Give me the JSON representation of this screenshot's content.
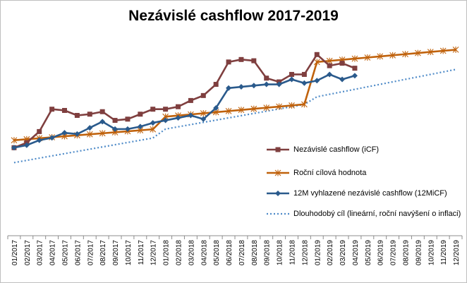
{
  "chart_data": {
    "type": "line",
    "title": "Nezávislé cashflow 2017-2019",
    "xlabel": "",
    "ylabel": "",
    "ylim": [
      0,
      100
    ],
    "grid": false,
    "legend_position": "right",
    "categories": [
      "01/2017",
      "02/2017",
      "03/2017",
      "04/2017",
      "05/2017",
      "06/2017",
      "07/2017",
      "08/2017",
      "09/2017",
      "10/2017",
      "11/2017",
      "12/2017",
      "01/2018",
      "02/2018",
      "03/2018",
      "04/2018",
      "05/2018",
      "06/2018",
      "07/2018",
      "08/2018",
      "09/2018",
      "10/2018",
      "11/2018",
      "12/2018",
      "01/2019",
      "02/2019",
      "03/2019",
      "04/2019",
      "05/2019",
      "06/2019",
      "07/2019",
      "08/2019",
      "09/2019",
      "10/2019",
      "11/2019",
      "12/2019"
    ],
    "series": [
      {
        "name": "Nezávislé cashflow (iCF)",
        "color": "#7f3f3f",
        "marker": "square",
        "style": "solid",
        "values": [
          22,
          26,
          35,
          53,
          52,
          48,
          49,
          51,
          44,
          45,
          49,
          53,
          53,
          55,
          60,
          64,
          73,
          91,
          93,
          92,
          78,
          75,
          81,
          81,
          97,
          88,
          90,
          86,
          null,
          null,
          null,
          null,
          null,
          null,
          null,
          null
        ]
      },
      {
        "name": "Roční cílová hodnota",
        "color": "#c0620c",
        "marker": "star",
        "style": "solid",
        "values": [
          28,
          28.8,
          29.6,
          30.4,
          31.2,
          32,
          32.8,
          33.6,
          34.4,
          35.2,
          36,
          36.8,
          47,
          47.9,
          48.8,
          49.7,
          50.6,
          51.5,
          52.4,
          53.3,
          54.2,
          55.1,
          56,
          56.9,
          91,
          91.9,
          92.8,
          93.7,
          94.6,
          95.5,
          96.4,
          97.3,
          98.2,
          99.1,
          100,
          100.9
        ]
      },
      {
        "name": "12M vyhlazené nezávislé cashflow (12MiCF)",
        "color": "#2a5a8c",
        "marker": "diamond",
        "style": "solid",
        "values": [
          22,
          24,
          28,
          30,
          34,
          33,
          38,
          43,
          37,
          37,
          39,
          42,
          44,
          46,
          48,
          45,
          54,
          70,
          71,
          72,
          73,
          73,
          77,
          74,
          76,
          81,
          77,
          80,
          null,
          null,
          null,
          null,
          null,
          null,
          null,
          null
        ]
      },
      {
        "name": "Dlouhodobý cíl (lineární, roční navýšení o inflaci)",
        "color": "#4f8bc8",
        "marker": "none",
        "style": "dotted",
        "values": [
          10,
          11.8,
          13.6,
          15.4,
          17.2,
          19,
          20.8,
          22.6,
          24.4,
          26.2,
          28,
          29.8,
          37,
          38.8,
          40.6,
          42.4,
          44.2,
          46,
          47.8,
          49.6,
          51.4,
          53.2,
          55,
          56.8,
          63,
          65,
          67,
          69,
          71,
          73,
          75,
          77,
          79,
          81,
          83,
          85
        ]
      }
    ]
  }
}
